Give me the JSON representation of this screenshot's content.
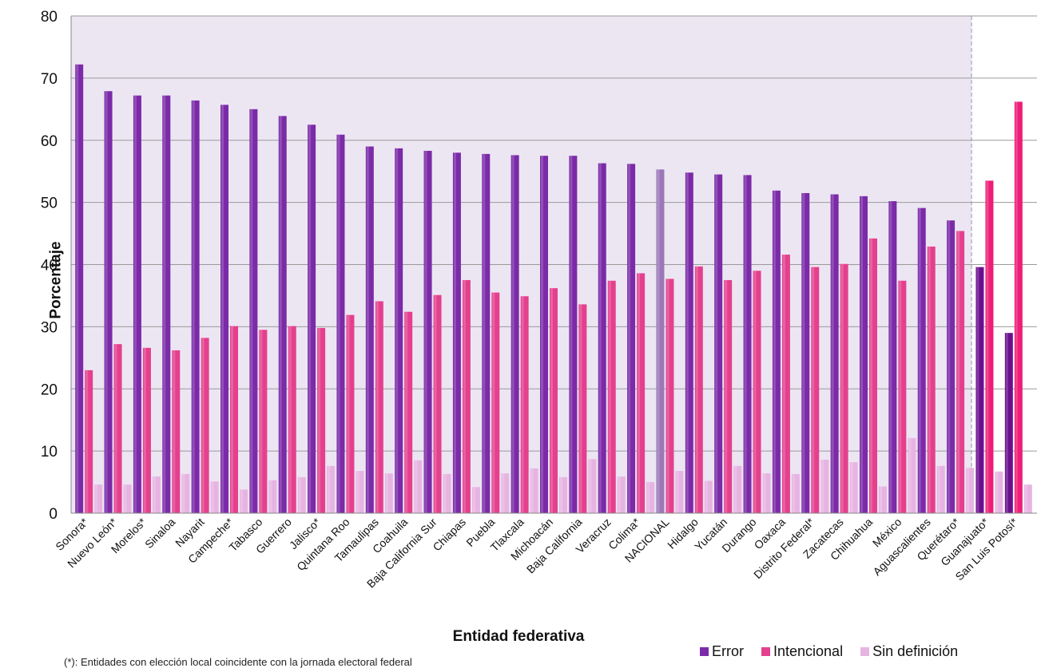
{
  "chart_data": {
    "type": "bar",
    "xlabel": "Entidad federativa",
    "ylabel": "Porcentaje",
    "ylim": [
      0,
      80
    ],
    "yticks": [
      0,
      10,
      20,
      30,
      40,
      50,
      60,
      70,
      80
    ],
    "grid": true,
    "legend_position": "bottom-right",
    "categories": [
      "Sonora*",
      "Nuevo León*",
      "Morelos*",
      "Sinaloa",
      "Nayarit",
      "Campeche*",
      "Tabasco",
      "Guerrero",
      "Jalisco*",
      "Quintana Roo",
      "Tamaulipas",
      "Coahuila",
      "Baja California Sur",
      "Chiapas",
      "Puebla",
      "Tlaxcala",
      "Michoacán",
      "Baja California",
      "Veracruz",
      "Colima*",
      "NACIONAL",
      "Hidalgo",
      "Yucatán",
      "Durango",
      "Oaxaca",
      "Distrito Federal*",
      "Zacatecas",
      "Chihuahua",
      "México",
      "Aguascalientes",
      "Querétaro*",
      "Guanajuato*",
      "San Luis Potosí*"
    ],
    "series": [
      {
        "name": "Error",
        "color": "#7b2aa8",
        "values": [
          72.2,
          67.9,
          67.2,
          67.2,
          66.4,
          65.7,
          65.0,
          63.9,
          62.5,
          60.9,
          59.0,
          58.7,
          58.3,
          58.0,
          57.8,
          57.6,
          57.5,
          57.5,
          56.3,
          56.2,
          55.3,
          54.8,
          54.5,
          54.4,
          51.9,
          51.5,
          51.3,
          51.0,
          50.2,
          49.1,
          47.1,
          39.6,
          29.0
        ]
      },
      {
        "name": "Intencional",
        "color": "#e4408e",
        "values": [
          23.0,
          27.2,
          26.6,
          26.2,
          28.2,
          30.1,
          29.5,
          30.1,
          29.8,
          31.9,
          34.1,
          32.4,
          35.1,
          37.5,
          35.5,
          34.9,
          36.2,
          33.6,
          37.4,
          38.6,
          37.7,
          39.7,
          37.5,
          39.0,
          41.6,
          39.6,
          40.1,
          44.2,
          37.4,
          42.9,
          45.4,
          53.5,
          66.2
        ]
      },
      {
        "name": "Sin definición",
        "color": "#e7b4e2",
        "values": [
          4.6,
          4.6,
          5.9,
          6.3,
          5.1,
          3.8,
          5.3,
          5.8,
          7.6,
          6.8,
          6.4,
          8.5,
          6.3,
          4.2,
          6.4,
          7.2,
          5.8,
          8.7,
          5.9,
          5.0,
          6.8,
          5.2,
          7.6,
          6.4,
          6.3,
          8.6,
          8.2,
          4.3,
          12.1,
          7.6,
          7.3,
          6.7,
          4.6
        ]
      }
    ]
  },
  "footnote": "(*): Entidades  con elección local coincidente con la jornada electoral  federal"
}
